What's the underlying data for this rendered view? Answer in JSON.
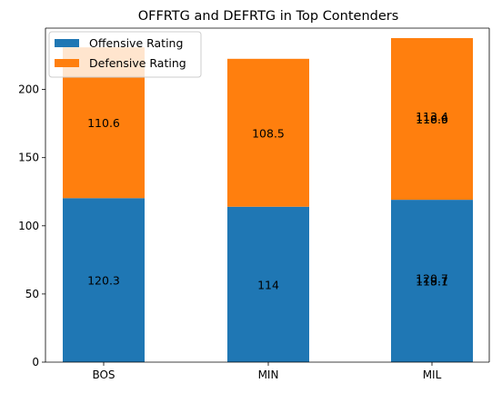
{
  "chart_data": {
    "type": "bar",
    "stacked": true,
    "title": "OFFRTG and DEFRTG in Top Contenders",
    "xlabel": "",
    "ylabel": "",
    "categories": [
      "BOS",
      "MIN",
      "MIL"
    ],
    "series": [
      {
        "name": "Offensive Rating",
        "color": "#1f77b4",
        "values": [
          120.3,
          114,
          119.1
        ]
      },
      {
        "name": "Defensive Rating",
        "color": "#ff7f0e",
        "values": [
          110.6,
          108.5,
          118.6
        ]
      }
    ],
    "extra_labels": [
      {
        "category": "MIL",
        "series": "Offensive Rating",
        "text": "118.7"
      },
      {
        "category": "MIL",
        "series": "Defensive Rating",
        "text": "116.9"
      },
      {
        "category": "MIL",
        "series": "Offensive Rating",
        "text": "120.7"
      },
      {
        "category": "MIL",
        "series": "Defensive Rating",
        "text": "113.4"
      }
    ],
    "ylim": [
      0,
      245
    ],
    "yticks": [
      0,
      50,
      100,
      150,
      200
    ],
    "grid": false,
    "legend_position": "top-left"
  }
}
